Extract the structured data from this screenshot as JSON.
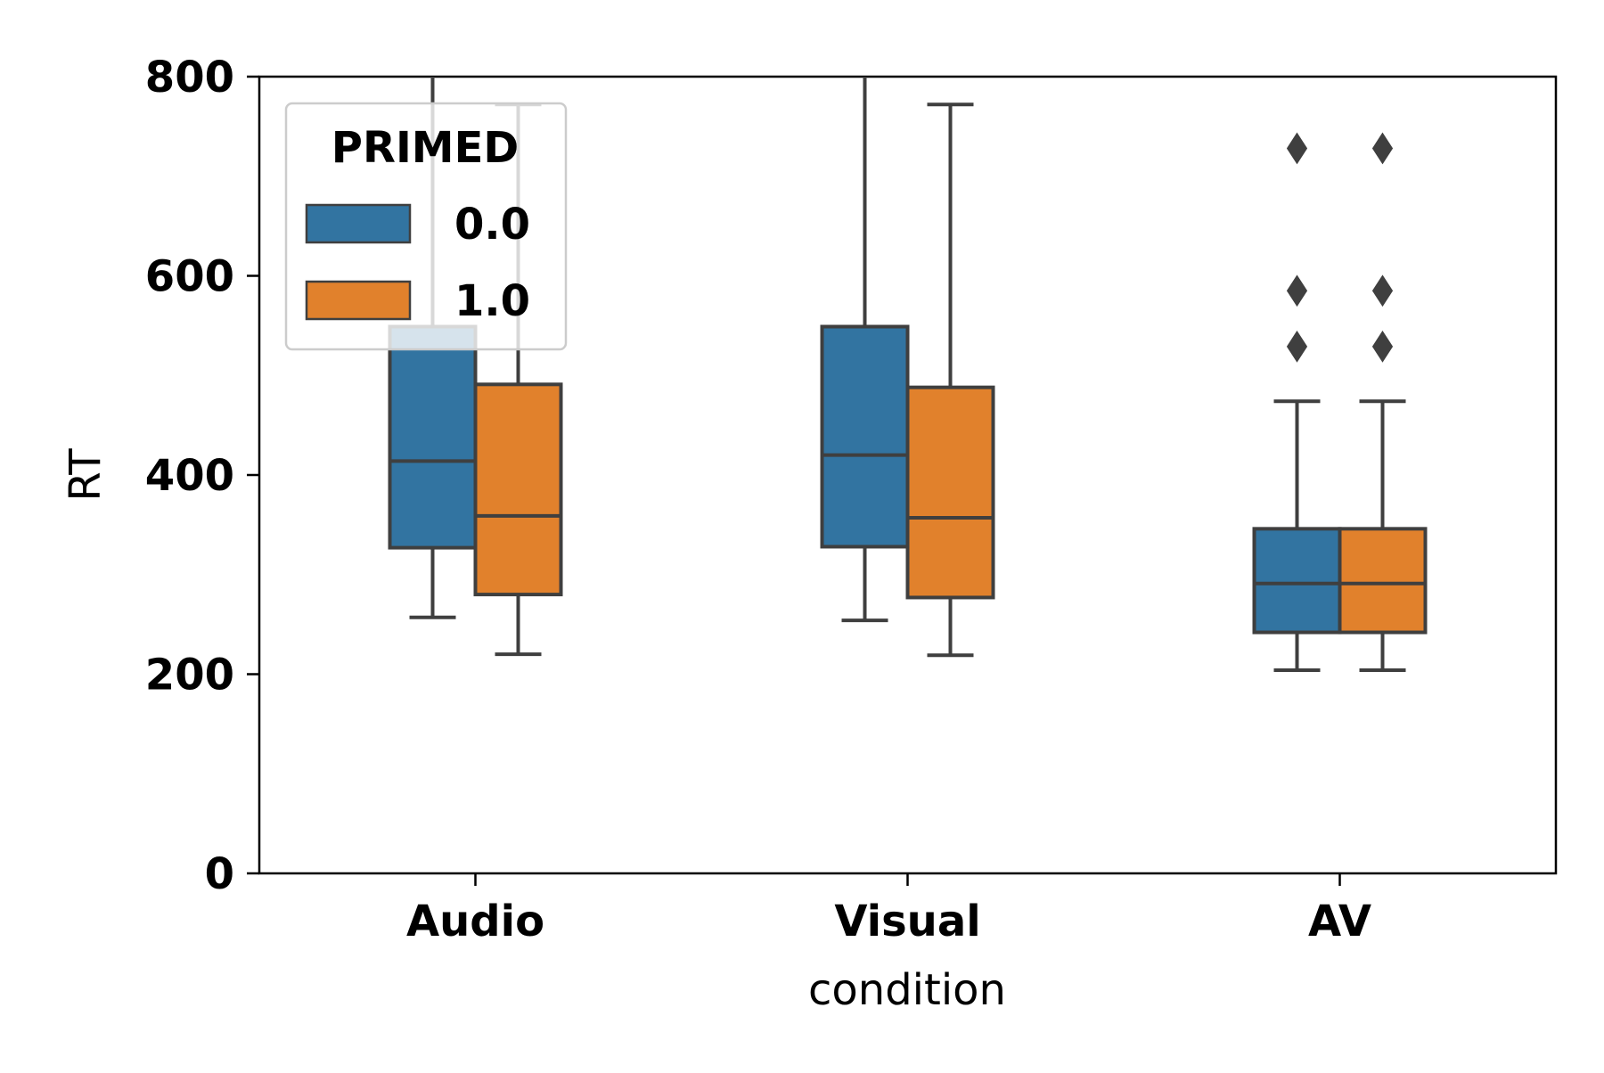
{
  "chart_data": {
    "type": "boxplot",
    "xlabel": "condition",
    "ylabel": "RT",
    "ylim": [
      0,
      800
    ],
    "yticks": [
      "0",
      "200",
      "400",
      "600",
      "800"
    ],
    "categories": [
      "Audio",
      "Visual",
      "AV"
    ],
    "legend": {
      "title": "PRIMED",
      "placement": "top-left",
      "frame": true
    },
    "grid": false,
    "series": [
      {
        "name": "0.0",
        "color": "#3274a1",
        "boxes": [
          {
            "category": "Audio",
            "whisker_low": 257,
            "q1": 327,
            "median": 414,
            "q3": 549,
            "whisker_high": 880,
            "outliers": []
          },
          {
            "category": "Visual",
            "whisker_low": 254,
            "q1": 328,
            "median": 420,
            "q3": 549,
            "whisker_high": 880,
            "outliers": []
          },
          {
            "category": "AV",
            "whisker_low": 204,
            "q1": 242,
            "median": 291,
            "q3": 346,
            "whisker_high": 474,
            "outliers": [
              529,
              585,
              728
            ]
          }
        ]
      },
      {
        "name": "1.0",
        "color": "#e1812c",
        "boxes": [
          {
            "category": "Audio",
            "whisker_low": 220,
            "q1": 280,
            "median": 359,
            "q3": 491,
            "whisker_high": 772,
            "outliers": []
          },
          {
            "category": "Visual",
            "whisker_low": 219,
            "q1": 277,
            "median": 357,
            "q3": 488,
            "whisker_high": 772,
            "outliers": []
          },
          {
            "category": "AV",
            "whisker_low": 204,
            "q1": 242,
            "median": 291,
            "q3": 346,
            "whisker_high": 474,
            "outliers": [
              529,
              585,
              728
            ]
          }
        ]
      }
    ]
  }
}
